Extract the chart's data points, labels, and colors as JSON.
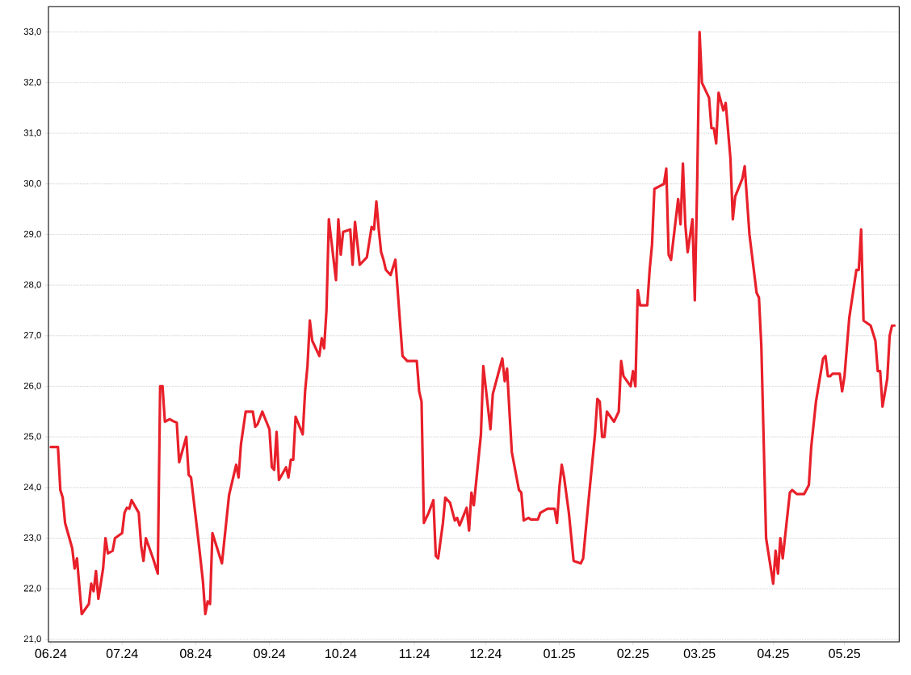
{
  "chart_data": {
    "type": "line",
    "grid": "y",
    "marker": "none",
    "line_style": "solid",
    "xlim": [
      "2024-05-31",
      "2025-05-24"
    ],
    "xticks": [
      {
        "value": "2024-06-01",
        "label": "06.24"
      },
      {
        "value": "2024-07-01",
        "label": "07.24"
      },
      {
        "value": "2024-08-01",
        "label": "08.24"
      },
      {
        "value": "2024-09-01",
        "label": "09.24"
      },
      {
        "value": "2024-10-01",
        "label": "10.24"
      },
      {
        "value": "2024-11-01",
        "label": "11.24"
      },
      {
        "value": "2024-12-01",
        "label": "12.24"
      },
      {
        "value": "2025-01-01",
        "label": "01.25"
      },
      {
        "value": "2025-02-01",
        "label": "02.25"
      },
      {
        "value": "2025-03-01",
        "label": "03.25"
      },
      {
        "value": "2025-04-01",
        "label": "04.25"
      },
      {
        "value": "2025-05-01",
        "label": "05.25"
      }
    ],
    "ylim": [
      20.95,
      33.5
    ],
    "yticks": [
      {
        "value": 21,
        "label": "21,0"
      },
      {
        "value": 22,
        "label": "22,0"
      },
      {
        "value": 23,
        "label": "23,0"
      },
      {
        "value": 24,
        "label": "24,0"
      },
      {
        "value": 25,
        "label": "25,0"
      },
      {
        "value": 26,
        "label": "26,0"
      },
      {
        "value": 27,
        "label": "27,0"
      },
      {
        "value": 28,
        "label": "28,0"
      },
      {
        "value": 29,
        "label": "29,0"
      },
      {
        "value": 30,
        "label": "30,0"
      },
      {
        "value": 31,
        "label": "31,0"
      },
      {
        "value": 32,
        "label": "32,0"
      },
      {
        "value": 33,
        "label": "33,0"
      }
    ],
    "x": [
      "2024-06-01",
      "2024-06-04",
      "2024-06-05",
      "2024-06-06",
      "2024-06-07",
      "2024-06-10",
      "2024-06-11",
      "2024-06-12",
      "2024-06-14",
      "2024-06-17",
      "2024-06-18",
      "2024-06-19",
      "2024-06-20",
      "2024-06-21",
      "2024-06-23",
      "2024-06-24",
      "2024-06-25",
      "2024-06-27",
      "2024-06-28",
      "2024-07-01",
      "2024-07-02",
      "2024-07-03",
      "2024-07-04",
      "2024-07-05",
      "2024-07-08",
      "2024-07-09",
      "2024-07-10",
      "2024-07-11",
      "2024-07-14",
      "2024-07-16",
      "2024-07-17",
      "2024-07-18",
      "2024-07-19",
      "2024-07-21",
      "2024-07-23",
      "2024-07-24",
      "2024-07-25",
      "2024-07-28",
      "2024-07-29",
      "2024-07-30",
      "2024-08-02",
      "2024-08-04",
      "2024-08-05",
      "2024-08-06",
      "2024-08-07",
      "2024-08-08",
      "2024-08-12",
      "2024-08-15",
      "2024-08-18",
      "2024-08-19",
      "2024-08-20",
      "2024-08-22",
      "2024-08-25",
      "2024-08-26",
      "2024-08-27",
      "2024-08-29",
      "2024-09-01",
      "2024-09-02",
      "2024-09-03",
      "2024-09-04",
      "2024-09-05",
      "2024-09-08",
      "2024-09-09",
      "2024-09-10",
      "2024-09-11",
      "2024-09-12",
      "2024-09-15",
      "2024-09-16",
      "2024-09-17",
      "2024-09-18",
      "2024-09-19",
      "2024-09-22",
      "2024-09-23",
      "2024-09-24",
      "2024-09-25",
      "2024-09-26",
      "2024-09-29",
      "2024-09-30",
      "2024-10-01",
      "2024-10-02",
      "2024-10-05",
      "2024-10-06",
      "2024-10-07",
      "2024-10-09",
      "2024-10-12",
      "2024-10-14",
      "2024-10-15",
      "2024-10-16",
      "2024-10-17",
      "2024-10-18",
      "2024-10-19",
      "2024-10-20",
      "2024-10-22",
      "2024-10-24",
      "2024-10-27",
      "2024-10-29",
      "2024-11-02",
      "2024-11-03",
      "2024-11-04",
      "2024-11-05",
      "2024-11-07",
      "2024-11-09",
      "2024-11-10",
      "2024-11-11",
      "2024-11-13",
      "2024-11-14",
      "2024-11-16",
      "2024-11-18",
      "2024-11-19",
      "2024-11-20",
      "2024-11-23",
      "2024-11-24",
      "2024-11-25",
      "2024-11-26",
      "2024-11-29",
      "2024-11-30",
      "2024-12-03",
      "2024-12-04",
      "2024-12-08",
      "2024-12-09",
      "2024-12-10",
      "2024-12-11",
      "2024-12-12",
      "2024-12-14",
      "2024-12-15",
      "2024-12-16",
      "2024-12-17",
      "2024-12-19",
      "2024-12-20",
      "2024-12-23",
      "2024-12-24",
      "2024-12-27",
      "2024-12-30",
      "2024-12-31",
      "2025-01-01",
      "2025-01-02",
      "2025-01-03",
      "2025-01-05",
      "2025-01-07",
      "2025-01-10",
      "2025-01-11",
      "2025-01-13",
      "2025-01-16",
      "2025-01-17",
      "2025-01-18",
      "2025-01-19",
      "2025-01-20",
      "2025-01-21",
      "2025-01-24",
      "2025-01-26",
      "2025-01-27",
      "2025-01-28",
      "2025-01-31",
      "2025-02-01",
      "2025-02-02",
      "2025-02-03",
      "2025-02-04",
      "2025-02-07",
      "2025-02-08",
      "2025-02-09",
      "2025-02-10",
      "2025-02-12",
      "2025-02-14",
      "2025-02-15",
      "2025-02-16",
      "2025-02-17",
      "2025-02-20",
      "2025-02-21",
      "2025-02-22",
      "2025-02-23",
      "2025-02-24",
      "2025-02-26",
      "2025-02-27",
      "2025-02-28",
      "2025-03-01",
      "2025-03-02",
      "2025-03-05",
      "2025-03-06",
      "2025-03-07",
      "2025-03-08",
      "2025-03-09",
      "2025-03-11",
      "2025-03-12",
      "2025-03-14",
      "2025-03-15",
      "2025-03-16",
      "2025-03-19",
      "2025-03-20",
      "2025-03-22",
      "2025-03-25",
      "2025-03-26",
      "2025-03-27",
      "2025-03-29",
      "2025-04-01",
      "2025-04-02",
      "2025-04-03",
      "2025-04-04",
      "2025-04-05",
      "2025-04-08",
      "2025-04-09",
      "2025-04-11",
      "2025-04-14",
      "2025-04-16",
      "2025-04-17",
      "2025-04-19",
      "2025-04-22",
      "2025-04-23",
      "2025-04-24",
      "2025-04-25",
      "2025-04-26",
      "2025-04-29",
      "2025-04-30",
      "2025-05-01",
      "2025-05-03",
      "2025-05-06",
      "2025-05-07",
      "2025-05-08",
      "2025-05-09",
      "2025-05-12",
      "2025-05-14",
      "2025-05-15",
      "2025-05-16",
      "2025-05-17",
      "2025-05-19",
      "2025-05-20",
      "2025-05-21",
      "2025-05-22"
    ],
    "series": [
      {
        "color": "#e8202a",
        "values": [
          24.8,
          24.8,
          23.95,
          23.8,
          23.3,
          22.8,
          22.4,
          22.6,
          21.5,
          21.7,
          22.1,
          21.95,
          22.35,
          21.8,
          22.4,
          23.0,
          22.7,
          22.75,
          23.0,
          23.1,
          23.5,
          23.6,
          23.58,
          23.75,
          23.5,
          22.85,
          22.55,
          23.0,
          22.6,
          22.3,
          26.0,
          26.0,
          25.3,
          25.35,
          25.3,
          25.28,
          24.5,
          25.0,
          24.25,
          24.2,
          23.0,
          22.15,
          21.5,
          21.75,
          21.7,
          23.1,
          22.5,
          23.85,
          24.45,
          24.2,
          24.85,
          25.5,
          25.5,
          25.2,
          25.25,
          25.5,
          25.15,
          24.4,
          24.35,
          25.1,
          24.15,
          24.4,
          24.2,
          24.55,
          24.55,
          25.4,
          25.05,
          25.9,
          26.4,
          27.3,
          26.9,
          26.6,
          26.95,
          26.75,
          27.5,
          29.3,
          28.1,
          29.3,
          28.6,
          29.05,
          29.1,
          28.4,
          29.25,
          28.4,
          28.55,
          29.15,
          29.1,
          29.65,
          29.1,
          28.65,
          28.5,
          28.3,
          28.2,
          28.5,
          26.6,
          26.5,
          26.5,
          25.9,
          25.7,
          23.3,
          23.5,
          23.75,
          22.65,
          22.6,
          23.3,
          23.8,
          23.7,
          23.35,
          23.4,
          23.25,
          23.6,
          23.15,
          23.9,
          23.65,
          25.05,
          26.4,
          25.15,
          25.85,
          26.55,
          26.1,
          26.35,
          25.5,
          24.7,
          24.2,
          23.95,
          23.9,
          23.35,
          23.4,
          23.37,
          23.37,
          23.5,
          23.58,
          23.58,
          23.3,
          24.0,
          24.45,
          24.2,
          23.5,
          22.55,
          22.5,
          22.6,
          23.6,
          25.05,
          25.75,
          25.7,
          25.0,
          25.0,
          25.5,
          25.3,
          25.5,
          26.5,
          26.2,
          26.0,
          26.3,
          26.0,
          27.9,
          27.6,
          27.6,
          28.3,
          28.8,
          29.9,
          29.95,
          30.0,
          30.3,
          28.6,
          28.5,
          29.7,
          29.2,
          30.4,
          29.2,
          28.65,
          29.3,
          27.7,
          30.0,
          33.0,
          32.0,
          31.7,
          31.1,
          31.1,
          30.8,
          31.8,
          31.45,
          31.6,
          30.5,
          29.3,
          29.75,
          30.1,
          30.35,
          29.0,
          27.85,
          27.75,
          26.8,
          23.0,
          22.1,
          22.75,
          22.3,
          23.0,
          22.6,
          23.9,
          23.95,
          23.87,
          23.87,
          24.05,
          24.8,
          25.7,
          26.55,
          26.6,
          26.2,
          26.2,
          26.25,
          26.25,
          25.9,
          26.2,
          27.35,
          28.3,
          28.3,
          29.1,
          27.3,
          27.2,
          26.9,
          26.3,
          26.3,
          25.6,
          26.15,
          27.0,
          27.2,
          27.2
        ]
      }
    ]
  }
}
